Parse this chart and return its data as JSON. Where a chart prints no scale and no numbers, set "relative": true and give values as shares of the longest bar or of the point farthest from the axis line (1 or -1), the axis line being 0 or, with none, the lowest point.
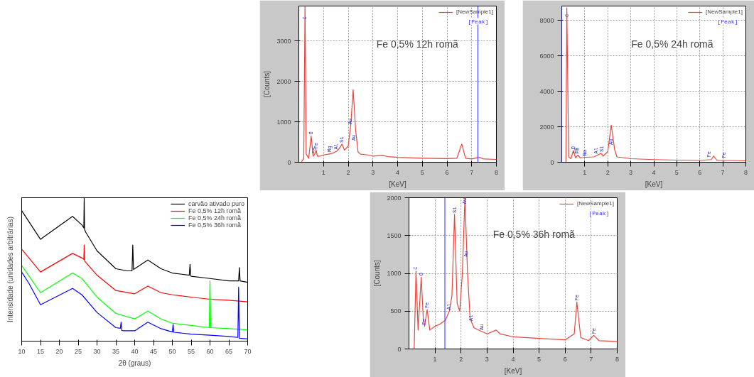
{
  "chart_data": [
    {
      "type": "line",
      "relative": true,
      "xlabel": "2θ (graus)",
      "ylabel": "Intensidade (unidades arbitrárias)",
      "xlim": [
        10,
        70
      ],
      "xticks": [
        10,
        15,
        20,
        25,
        30,
        35,
        40,
        45,
        50,
        55,
        60,
        65,
        70
      ],
      "grid": false,
      "legend": "top right",
      "series": [
        {
          "name": "carvão ativado puro",
          "color": "#000000",
          "x": [
            10,
            15,
            23.5,
            26,
            26.5,
            26.6,
            26.7,
            27,
            30,
            35,
            38,
            39.3,
            39.5,
            39.7,
            40,
            43.5,
            47,
            50,
            54.5,
            54.7,
            54.9,
            55,
            60,
            65,
            67.6,
            67.8,
            68,
            70
          ],
          "values": [
            0.91,
            0.71,
            0.87,
            0.81,
            0.79,
            1.0,
            0.78,
            0.76,
            0.63,
            0.505,
            0.49,
            0.49,
            0.67,
            0.5,
            0.505,
            0.566,
            0.505,
            0.475,
            0.46,
            0.536,
            0.455,
            0.452,
            0.437,
            0.42,
            0.42,
            0.513,
            0.42,
            0.41
          ]
        },
        {
          "name": "Fe 0,5% 12h romã",
          "color": "#ff0000",
          "x": [
            10,
            15,
            23.5,
            26,
            26.5,
            26.6,
            26.7,
            27,
            30,
            35,
            40,
            43.5,
            47,
            50,
            55,
            60,
            65,
            70
          ],
          "values": [
            0.642,
            0.482,
            0.612,
            0.58,
            0.57,
            0.67,
            0.56,
            0.55,
            0.46,
            0.353,
            0.33,
            0.384,
            0.338,
            0.323,
            0.307,
            0.292,
            0.285,
            0.274
          ]
        },
        {
          "name": "Fe 0,5% 24h romã",
          "color": "#00ff00",
          "x": [
            10,
            15,
            23.5,
            26,
            30,
            35,
            40,
            43.5,
            47,
            50,
            55,
            59.8,
            60,
            60.2,
            65,
            70
          ],
          "values": [
            0.528,
            0.338,
            0.475,
            0.437,
            0.307,
            0.193,
            0.155,
            0.209,
            0.155,
            0.125,
            0.11,
            0.094,
            0.42,
            0.094,
            0.087,
            0.079
          ]
        },
        {
          "name": "Fe 0,5% 36h romã",
          "color": "#0000ff",
          "x": [
            10,
            12,
            15,
            23.5,
            26,
            30,
            35,
            36.2,
            36.4,
            36.6,
            37,
            40,
            43.5,
            47,
            50,
            50.2,
            50.4,
            55,
            60,
            65,
            67.4,
            67.6,
            67.8,
            70
          ],
          "values": [
            0.482,
            0.4,
            0.254,
            0.368,
            0.323,
            0.2,
            0.094,
            0.09,
            0.132,
            0.075,
            0.072,
            0.072,
            0.132,
            0.087,
            0.064,
            0.117,
            0.062,
            0.049,
            0.041,
            0.033,
            0.026,
            0.376,
            0.02,
            0.015
          ]
        }
      ]
    },
    {
      "type": "line",
      "xlabel": "[KeV]",
      "ylabel": "[Counts]",
      "xlim": [
        0,
        8
      ],
      "ylim": [
        0,
        3870
      ],
      "xticks": [
        1,
        2,
        3,
        4,
        5,
        6,
        7,
        8
      ],
      "yticks": [
        0,
        1000,
        2000,
        3000
      ],
      "grid": true,
      "legend": "top right",
      "ref_lines": [
        {
          "axis": "x",
          "value": 7.25,
          "label": "[Peak]",
          "color": "#3030ff"
        }
      ],
      "annotations": [
        "Fe 0,5% 12h romã",
        {
          "text": "C",
          "x": 0.25,
          "y": 3500
        },
        {
          "text": "O",
          "x": 0.5,
          "y": 650
        },
        {
          "text": "Fe",
          "x": 0.62,
          "y": 180
        },
        {
          "text": "Fe",
          "x": 0.7,
          "y": 300
        },
        {
          "text": "Mg",
          "x": 1.25,
          "y": 220
        },
        {
          "text": "Al",
          "x": 1.5,
          "y": 280
        },
        {
          "text": "Si",
          "x": 1.75,
          "y": 450
        },
        {
          "text": "Au",
          "x": 2.1,
          "y": 900
        },
        {
          "text": "Au",
          "x": 2.22,
          "y": 500
        }
      ],
      "series": [
        {
          "name": "[NewSample1]",
          "color": "#e8453c",
          "x": [
            0,
            0.1,
            0.2,
            0.25,
            0.3,
            0.4,
            0.5,
            0.58,
            0.65,
            0.7,
            0.75,
            0.85,
            1.0,
            1.2,
            1.4,
            1.55,
            1.65,
            1.75,
            1.85,
            2.0,
            2.1,
            2.2,
            2.3,
            2.4,
            2.5,
            2.8,
            3.0,
            3.4,
            3.6,
            4.0,
            5.0,
            6.0,
            6.4,
            6.6,
            6.75,
            7.0,
            7.3,
            7.5,
            8.0
          ],
          "values": [
            0,
            0,
            100,
            3850,
            200,
            100,
            650,
            150,
            200,
            300,
            150,
            150,
            180,
            200,
            230,
            280,
            350,
            450,
            300,
            400,
            900,
            1800,
            800,
            250,
            200,
            180,
            150,
            170,
            140,
            120,
            100,
            90,
            100,
            450,
            100,
            80,
            120,
            80,
            70
          ]
        }
      ]
    },
    {
      "type": "line",
      "xlabel": "[KeV]",
      "xlim": [
        0,
        8
      ],
      "ylim": [
        0,
        8800
      ],
      "xticks": [
        1,
        2,
        3,
        4,
        5,
        6,
        7,
        8
      ],
      "yticks": [
        0,
        2000,
        4000,
        6000,
        8000
      ],
      "grid": true,
      "legend": "top right",
      "ref_lines": [
        {
          "axis": "x",
          "value": 0,
          "label": "[Peak]",
          "color": "#3030ff"
        }
      ],
      "annotations": [
        "Fe 0,5% 24h romã",
        {
          "text": "C",
          "x": 0.22,
          "y": 8100
        },
        {
          "text": "O",
          "x": 0.5,
          "y": 650
        },
        {
          "text": "Fe",
          "x": 0.6,
          "y": 400
        },
        {
          "text": "Fe",
          "x": 0.7,
          "y": 400
        },
        {
          "text": "Na",
          "x": 1.0,
          "y": 280
        },
        {
          "text": "Al",
          "x": 1.5,
          "y": 400
        },
        {
          "text": "Si",
          "x": 1.75,
          "y": 500
        },
        {
          "text": "Au",
          "x": 2.15,
          "y": 900
        },
        {
          "text": "Fe",
          "x": 6.4,
          "y": 200
        },
        {
          "text": "Fe",
          "x": 7.05,
          "y": 150
        }
      ],
      "series": [
        {
          "name": "[NewSample1]",
          "color": "#e8453c",
          "x": [
            0,
            0.18,
            0.22,
            0.3,
            0.4,
            0.5,
            0.6,
            0.7,
            0.8,
            1.0,
            1.4,
            1.55,
            1.7,
            1.8,
            2.0,
            2.15,
            2.3,
            2.4,
            3.0,
            4.0,
            5.0,
            6.0,
            6.5,
            6.6,
            6.75,
            7.3,
            8.0
          ],
          "values": [
            0,
            0,
            8700,
            300,
            200,
            650,
            250,
            400,
            250,
            280,
            300,
            400,
            500,
            350,
            600,
            2100,
            700,
            300,
            200,
            150,
            120,
            100,
            150,
            350,
            100,
            100,
            80
          ]
        }
      ]
    },
    {
      "type": "line",
      "xlabel": "[KeV]",
      "ylabel": "[Counts]",
      "xlim": [
        0,
        8
      ],
      "ylim": [
        0,
        2000
      ],
      "xticks": [
        1,
        2,
        3,
        4,
        5,
        6,
        7,
        8
      ],
      "yticks": [
        0,
        500,
        1000,
        1500,
        2000
      ],
      "grid": true,
      "legend": "top right",
      "ref_lines": [
        {
          "axis": "x",
          "value": 1.38,
          "label": "[Peak]",
          "color": "#3030ff"
        }
      ],
      "annotations": [
        "Fe 0,5% 36h romã",
        {
          "text": "C",
          "x": 0.27,
          "y": 1030
        },
        {
          "text": "O",
          "x": 0.47,
          "y": 950
        },
        {
          "text": "Fe",
          "x": 0.6,
          "y": 300
        },
        {
          "text": "Fe",
          "x": 0.7,
          "y": 520
        },
        {
          "text": "Al",
          "x": 1.55,
          "y": 500
        },
        {
          "text": "Si",
          "x": 1.75,
          "y": 1780
        },
        {
          "text": "Au",
          "x": 2.15,
          "y": 1900
        },
        {
          "text": "Au",
          "x": 2.2,
          "y": 1200
        },
        {
          "text": "Al",
          "x": 2.4,
          "y": 350
        },
        {
          "text": "Au",
          "x": 2.8,
          "y": 230
        },
        {
          "text": "Fe",
          "x": 6.45,
          "y": 620
        },
        {
          "text": "Fe",
          "x": 7.1,
          "y": 180
        }
      ],
      "series": [
        {
          "name": "[NewSample1]",
          "color": "#e8453c",
          "x": [
            0.15,
            0.2,
            0.27,
            0.35,
            0.47,
            0.55,
            0.6,
            0.7,
            0.8,
            1.0,
            1.2,
            1.4,
            1.55,
            1.65,
            1.75,
            1.85,
            1.95,
            2.05,
            2.15,
            2.25,
            2.35,
            2.5,
            2.8,
            3.0,
            3.35,
            3.5,
            4.0,
            5.0,
            6.0,
            6.35,
            6.45,
            6.6,
            6.9,
            7.1,
            7.3,
            8.0
          ],
          "values": [
            0,
            0,
            1030,
            250,
            950,
            400,
            300,
            520,
            250,
            300,
            330,
            380,
            500,
            700,
            1780,
            600,
            500,
            1000,
            2000,
            1000,
            400,
            280,
            230,
            200,
            250,
            200,
            160,
            140,
            120,
            200,
            620,
            150,
            110,
            180,
            110,
            100
          ]
        }
      ]
    }
  ]
}
